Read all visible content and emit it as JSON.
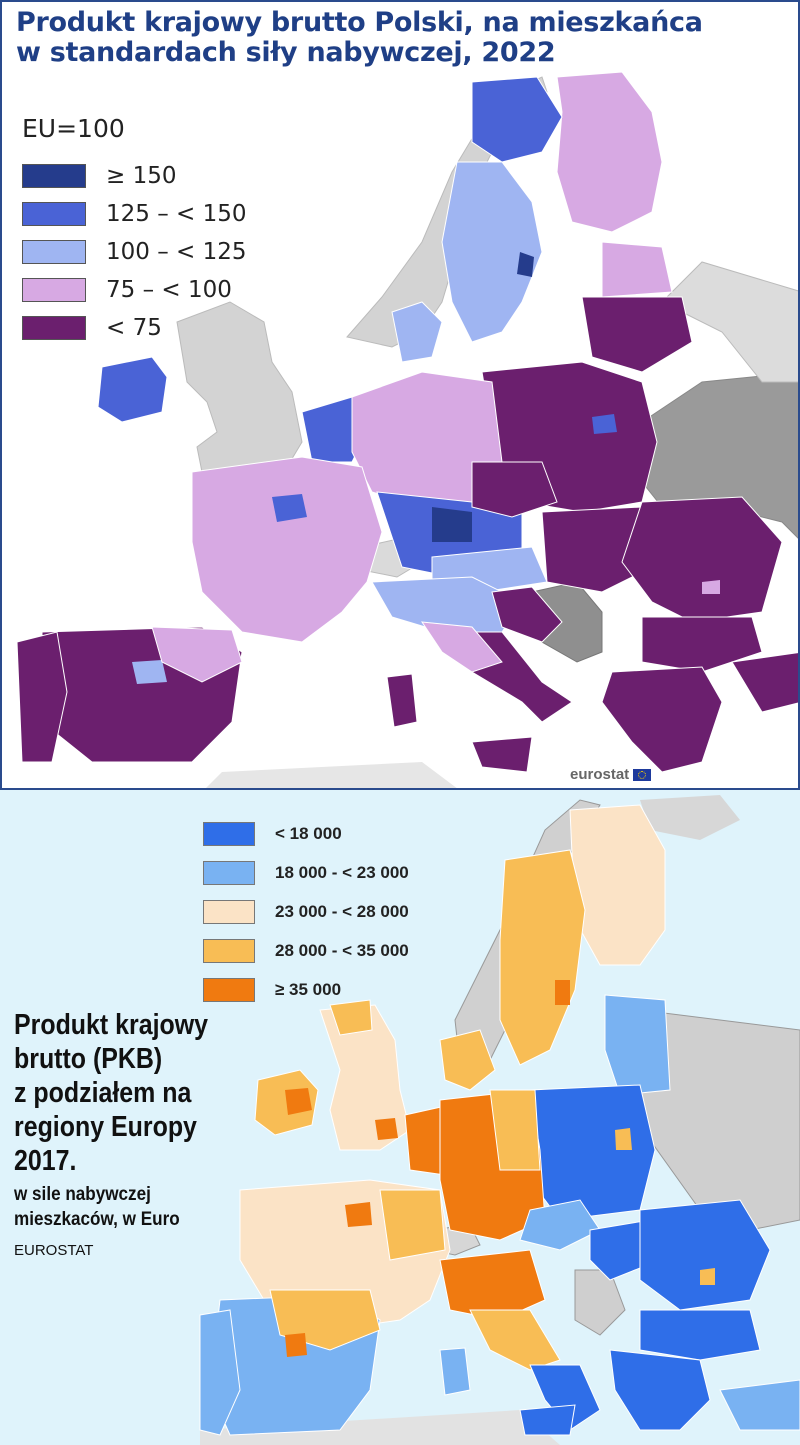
{
  "top_map": {
    "title_line1": "Produkt krajowy brutto Polski, na mieszkańca",
    "title_line2": "w standardach siły nabywczej, 2022",
    "legend_title": "EU=100",
    "legend": [
      {
        "label": "≥ 150",
        "color": "#253c8c"
      },
      {
        "label": "125 – < 150",
        "color": "#4a63d6"
      },
      {
        "label": "100 – < 125",
        "color": "#9fb5f2"
      },
      {
        "label": "75 – < 100",
        "color": "#d7a9e3"
      },
      {
        "label": "< 75",
        "color": "#6b1f6e"
      }
    ],
    "source": "eurostat",
    "non_eu_color": "#c9c9c9",
    "sea_color": "#ffffff"
  },
  "bottom_map": {
    "legend": [
      {
        "label": "< 18 000",
        "color": "#2f6ee8"
      },
      {
        "label": "18 000 - < 23 000",
        "color": "#79b2f2"
      },
      {
        "label": "23 000 - < 28 000",
        "color": "#fbe3c6"
      },
      {
        "label": "28 000 - < 35 000",
        "color": "#f8bd55"
      },
      {
        "label": "≥ 35 000",
        "color": "#f07a10"
      }
    ],
    "title_lines": [
      "Produkt krajowy",
      "brutto (PKB)",
      "z podziałem na",
      "regiony Europy",
      "2017."
    ],
    "subtitle_line1": "w sile nabywczej",
    "subtitle_line2": "mieszkaców, w Euro",
    "source": "EUROSTAT",
    "non_eu_color": "#c8c8c8",
    "sea_color": "#dff3fb"
  }
}
